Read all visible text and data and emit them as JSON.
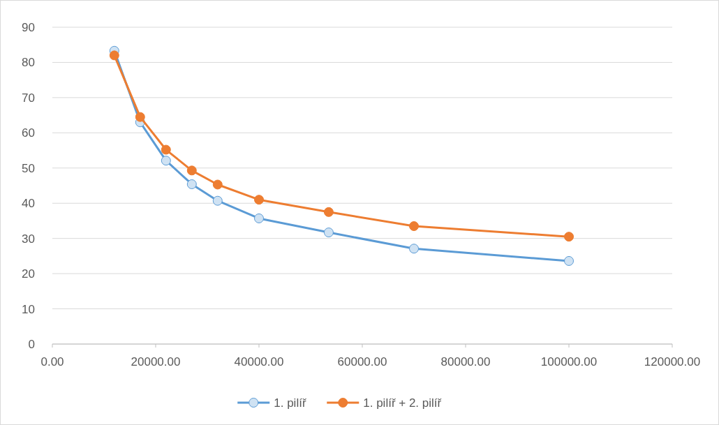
{
  "chart_data": {
    "type": "line",
    "x": [
      12000,
      17000,
      22000,
      27000,
      32000,
      40000,
      53500,
      70000,
      100000
    ],
    "series": [
      {
        "name": "1. pilíř",
        "color": "#5b9bd5",
        "values": [
          83.3,
          63.0,
          52.1,
          45.4,
          40.7,
          35.7,
          31.7,
          27.1,
          23.6
        ]
      },
      {
        "name": "1. pilíř + 2. pilíř",
        "color": "#ed7d31",
        "values": [
          82.0,
          64.5,
          55.2,
          49.3,
          45.3,
          41.0,
          37.5,
          33.5,
          30.5
        ]
      }
    ],
    "xlim": [
      0,
      120000
    ],
    "xticks": [
      {
        "value": 0,
        "label": "0.00"
      },
      {
        "value": 20000,
        "label": "20000.00"
      },
      {
        "value": 40000,
        "label": "40000.00"
      },
      {
        "value": 60000,
        "label": "60000.00"
      },
      {
        "value": 80000,
        "label": "80000.00"
      },
      {
        "value": 100000,
        "label": "100000.00"
      },
      {
        "value": 120000,
        "label": "120000.00"
      }
    ],
    "ylim": [
      0,
      90
    ],
    "yticks": [
      0,
      10,
      20,
      30,
      40,
      50,
      60,
      70,
      80,
      90
    ],
    "grid": "y",
    "legend": "bottom",
    "marker": "circle",
    "line_style": "solid"
  }
}
